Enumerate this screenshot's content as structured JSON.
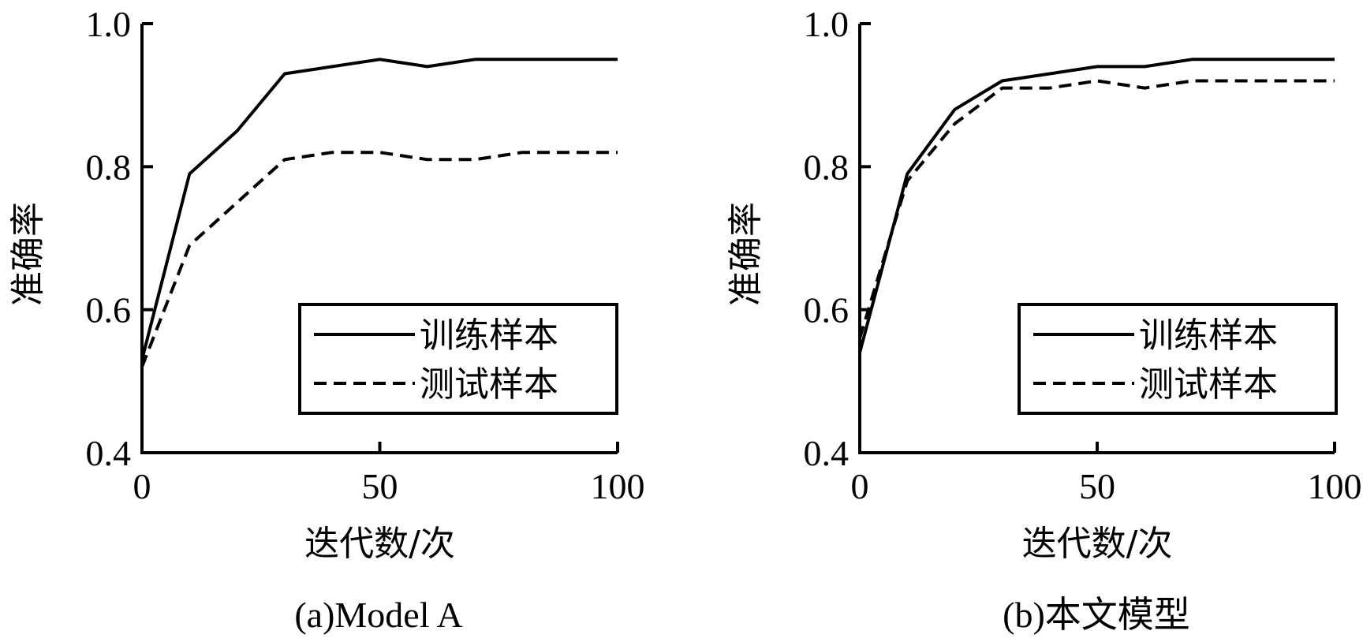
{
  "chart_data": [
    {
      "type": "line",
      "title": "(a)Model A",
      "xlabel": "迭代数/次",
      "ylabel": "准确率",
      "xlim": [
        0,
        100
      ],
      "ylim": [
        0.4,
        1.0
      ],
      "xticks": [
        "0",
        "50",
        "100"
      ],
      "yticks": [
        "0.4",
        "0.6",
        "0.8",
        "1.0"
      ],
      "grid": false,
      "legend_position": "bottom-right",
      "series": [
        {
          "name": "训练样本",
          "style": "solid",
          "color": "#000000",
          "x": [
            0,
            10,
            20,
            30,
            40,
            50,
            60,
            70,
            80,
            90,
            100
          ],
          "y": [
            0.53,
            0.79,
            0.85,
            0.93,
            0.94,
            0.95,
            0.94,
            0.95,
            0.95,
            0.95,
            0.95
          ]
        },
        {
          "name": "测试样本",
          "style": "dashed",
          "color": "#000000",
          "x": [
            0,
            10,
            20,
            30,
            40,
            50,
            60,
            70,
            80,
            90,
            100
          ],
          "y": [
            0.52,
            0.69,
            0.75,
            0.81,
            0.82,
            0.82,
            0.81,
            0.81,
            0.82,
            0.82,
            0.82
          ]
        }
      ]
    },
    {
      "type": "line",
      "title": "(b)本文模型",
      "xlabel": "迭代数/次",
      "ylabel": "准确率",
      "xlim": [
        0,
        100
      ],
      "ylim": [
        0.4,
        1.0
      ],
      "xticks": [
        "0",
        "50",
        "100"
      ],
      "yticks": [
        "0.4",
        "0.6",
        "0.8",
        "1.0"
      ],
      "grid": false,
      "legend_position": "bottom-right",
      "series": [
        {
          "name": "训练样本",
          "style": "solid",
          "color": "#000000",
          "x": [
            0,
            10,
            20,
            30,
            40,
            50,
            60,
            70,
            80,
            90,
            100
          ],
          "y": [
            0.54,
            0.79,
            0.88,
            0.92,
            0.93,
            0.94,
            0.94,
            0.95,
            0.95,
            0.95,
            0.95
          ]
        },
        {
          "name": "测试样本",
          "style": "dashed",
          "color": "#000000",
          "x": [
            0,
            10,
            20,
            30,
            40,
            50,
            60,
            70,
            80,
            90,
            100
          ],
          "y": [
            0.56,
            0.78,
            0.86,
            0.91,
            0.91,
            0.92,
            0.91,
            0.92,
            0.92,
            0.92,
            0.92
          ]
        }
      ]
    }
  ]
}
